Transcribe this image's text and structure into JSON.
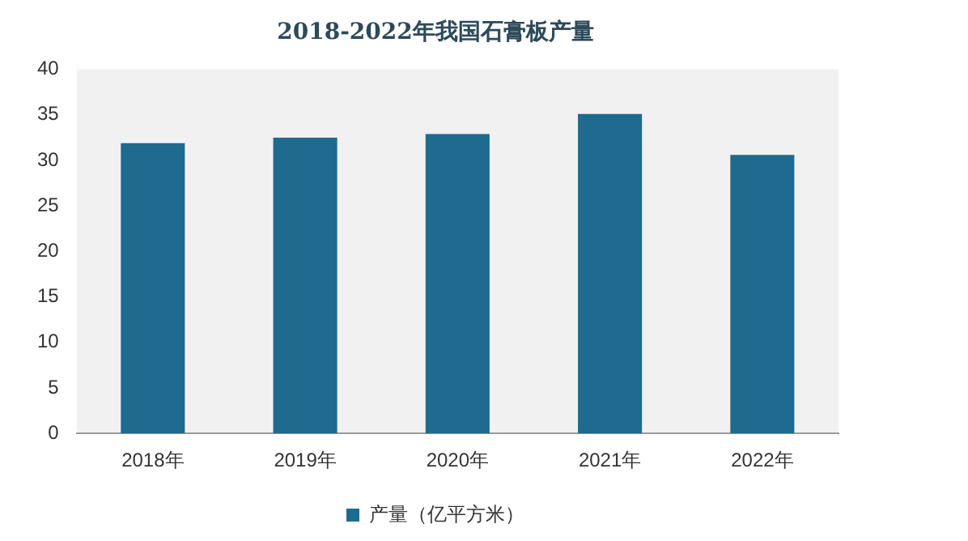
{
  "chart_data": {
    "type": "bar",
    "title": "2018-2022年我国石膏板产量",
    "categories": [
      "2018年",
      "2019年",
      "2020年",
      "2021年",
      "2022年"
    ],
    "series": [
      {
        "name": "产量（亿平方米）",
        "color": "#1f6a8f",
        "values": [
          31.9,
          32.5,
          32.9,
          35.1,
          30.6
        ]
      }
    ],
    "ylim": [
      0,
      40
    ],
    "yticks": [
      0,
      5,
      10,
      15,
      20,
      25,
      30,
      35,
      40
    ],
    "grid": false,
    "legend": "bottom"
  }
}
